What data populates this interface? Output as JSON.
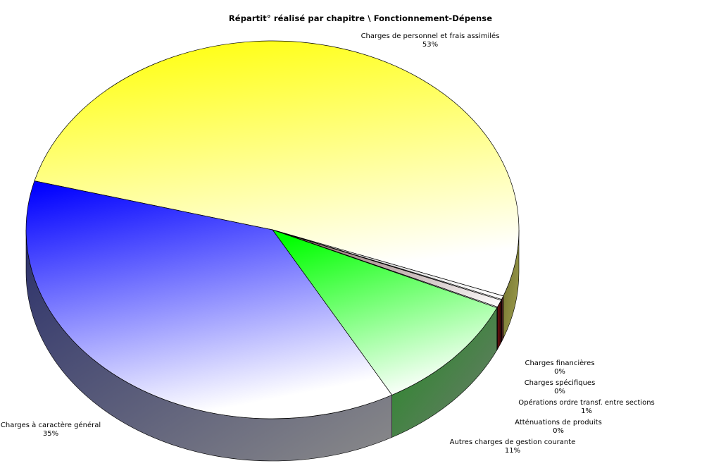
{
  "chart_data": {
    "type": "pie",
    "title": "Répartit° réalisé par chapitre \\ Fonctionnement-Dépense",
    "style": "3d",
    "slices": [
      {
        "label": "Charges de personnel et frais assimilés",
        "percent_label": "53%",
        "value": 53,
        "color": "#ffff00"
      },
      {
        "label": "Charges financières",
        "percent_label": "0%",
        "value": 0.1,
        "color": "#c0c0c0"
      },
      {
        "label": "Charges spécifiques",
        "percent_label": "0%",
        "value": 0.1,
        "color": "#c0c0c0"
      },
      {
        "label": "Opérations ordre transf. entre sections",
        "percent_label": "1%",
        "value": 1,
        "color": "#7f5a5a"
      },
      {
        "label": "Atténuations de produits",
        "percent_label": "0%",
        "value": 0.1,
        "color": "#c0c0c0"
      },
      {
        "label": "Autres charges de gestion courante",
        "percent_label": "11%",
        "value": 11,
        "color": "#00ff00"
      },
      {
        "label": "Charges à caractère général",
        "percent_label": "35%",
        "value": 35,
        "color": "#0000ff"
      }
    ]
  }
}
